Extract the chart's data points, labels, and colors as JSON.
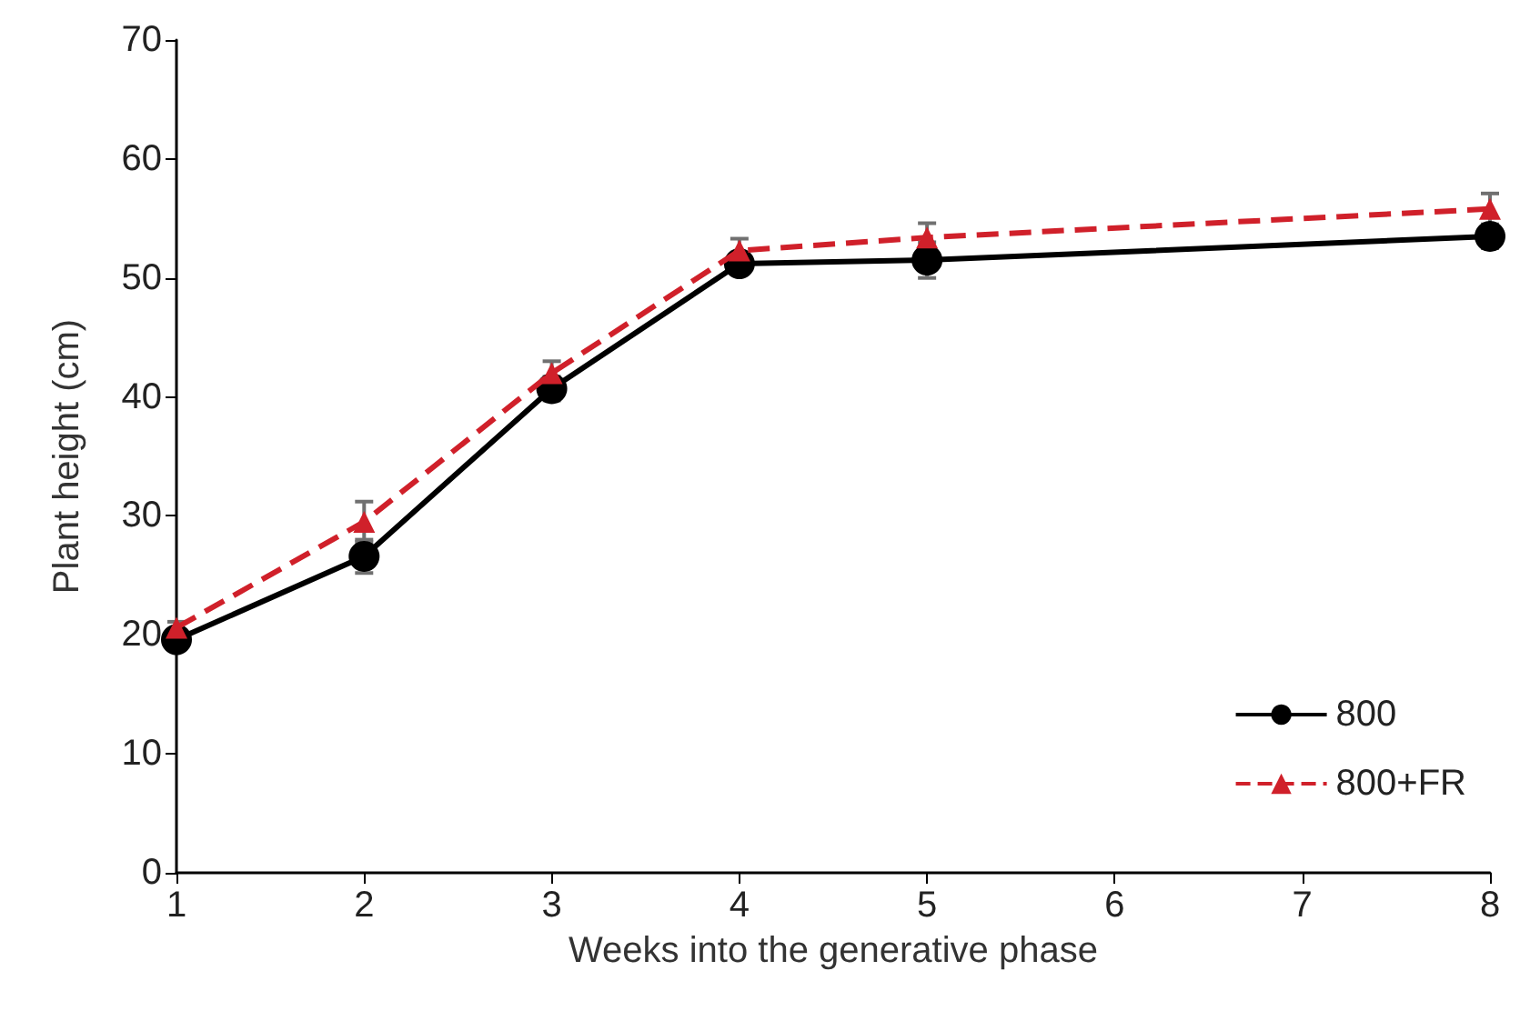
{
  "chart_data": {
    "type": "line",
    "xlabel": "Weeks into the generative phase",
    "ylabel": "Plant height (cm)",
    "xlim": [
      1,
      8
    ],
    "xticks": [
      1,
      2,
      3,
      4,
      5,
      6,
      7,
      8
    ],
    "ylim": [
      0,
      70
    ],
    "yticks": [
      0,
      10,
      20,
      30,
      40,
      50,
      60,
      70
    ],
    "grid": false,
    "legend": "bottom right",
    "series": [
      {
        "name": "800",
        "color": "#000000",
        "marker": "circle",
        "line_style": "solid",
        "x": [
          1,
          2,
          3,
          4,
          5,
          8
        ],
        "values": [
          19.6,
          26.6,
          40.7,
          51.2,
          51.5,
          53.5
        ],
        "errors": [
          0.5,
          1.4,
          1.0,
          0.5,
          1.5,
          1.0
        ]
      },
      {
        "name": "800+FR",
        "color": "#d0202a",
        "marker": "triangle",
        "line_style": "dashed",
        "x": [
          1,
          2,
          3,
          4,
          5,
          8
        ],
        "values": [
          20.6,
          29.5,
          42.0,
          52.3,
          53.4,
          55.8
        ],
        "errors": [
          0.5,
          1.7,
          1.0,
          1.0,
          1.2,
          1.3
        ]
      }
    ]
  }
}
